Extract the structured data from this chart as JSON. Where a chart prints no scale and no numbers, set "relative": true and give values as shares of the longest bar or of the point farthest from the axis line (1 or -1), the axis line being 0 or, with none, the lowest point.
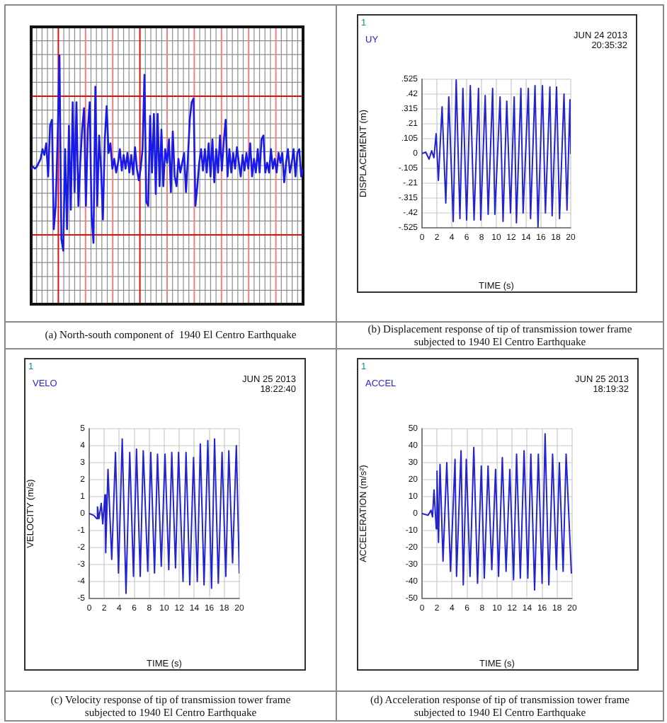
{
  "chart_data": [
    {
      "type": "line",
      "title": "(a) North-south component of  1940 El Centro Earthquake",
      "relative": true,
      "grid": true,
      "categories": [
        null,
        null,
        null,
        null,
        null,
        null,
        null,
        null,
        null,
        null,
        null,
        null,
        null,
        null,
        null,
        null,
        null,
        null,
        null,
        null,
        null,
        null,
        null,
        null,
        null,
        null,
        null,
        null,
        null,
        null,
        null,
        null,
        null,
        null,
        null,
        null,
        null,
        null,
        null,
        null,
        null,
        null,
        null,
        null,
        null,
        null,
        null,
        null,
        null,
        null,
        null,
        null,
        null,
        null,
        null,
        null,
        null,
        null,
        null,
        null,
        null,
        null,
        null,
        null,
        null,
        null,
        null,
        null,
        null,
        null,
        null,
        null,
        null,
        null,
        null,
        null,
        null,
        null,
        null,
        null,
        null,
        null,
        null,
        null,
        null,
        null,
        null,
        null,
        null,
        null,
        null,
        null,
        null,
        null,
        null,
        null,
        null,
        null,
        null,
        null,
        null,
        null,
        null,
        null,
        null,
        null,
        null,
        null,
        null,
        null,
        null,
        null,
        null,
        null,
        null,
        null,
        null,
        null,
        null,
        null,
        null,
        null,
        null,
        null,
        null,
        null,
        null,
        null,
        null,
        null,
        null,
        null,
        null,
        null,
        null,
        null,
        null,
        null,
        null,
        null,
        null,
        null,
        null,
        null,
        null
      ],
      "values": [
        0.42,
        0.43,
        0.42,
        0.43,
        0.45,
        0.47,
        0.52,
        0.49,
        0.55,
        0.38,
        0.64,
        0.67,
        0.11,
        0.23,
        0.57,
        1,
        0.06,
        0,
        0.52,
        0.11,
        0.64,
        0.21,
        0.76,
        0.3,
        0.76,
        0.23,
        0.45,
        0.62,
        0.73,
        0.23,
        0.62,
        0.76,
        0.18,
        0.04,
        0.84,
        0.23,
        0.59,
        0.42,
        0.16,
        0.57,
        0.74,
        0.5,
        0.55,
        0.42,
        0.47,
        0.4,
        0.45,
        0.52,
        0.41,
        0.49,
        0.42,
        0.5,
        0.4,
        0.49,
        0.39,
        0.53,
        0.42,
        0.36,
        0.42,
        0.52,
        0.9,
        0.25,
        0.23,
        0.69,
        0.4,
        0.7,
        0.29,
        0.7,
        0.33,
        0.62,
        0.33,
        0.52,
        0.45,
        0.57,
        0.3,
        0.61,
        0.38,
        0.33,
        0.47,
        0.4,
        0.45,
        0.5,
        0.3,
        0.47,
        0.67,
        0.76,
        0.78,
        0.23,
        0.33,
        0.45,
        0.52,
        0.41,
        0.52,
        0.4,
        0.55,
        0.38,
        0.57,
        0.35,
        0.52,
        0.4,
        0.59,
        0.41,
        0.56,
        0.67,
        0.38,
        0.52,
        0.4,
        0.5,
        0.42,
        0.53,
        0.45,
        0.38,
        0.49,
        0.41,
        0.5,
        0.42,
        0.55,
        0.38,
        0.47,
        0.4,
        0.52,
        0.4,
        0.57,
        0.59,
        0.4,
        0.45,
        0.4,
        0.52,
        0.42,
        0.47,
        0.4,
        0.5,
        0.45,
        0.5,
        0.35,
        0.45,
        0.52,
        0.4,
        0.45,
        0.52,
        0.38,
        0.5,
        0.52,
        0.38,
        0.42
      ],
      "color": "#1a1ae6"
    },
    {
      "type": "line",
      "title": "(b) Displacement response of tip of transmission tower frame subjected to 1940 El Centro Earthquake",
      "xlabel": "TIME (s)",
      "ylabel": "DISPLACEMENT (m)",
      "annotations": [
        "1",
        "JUN 24 2013",
        "20:35:32"
      ],
      "x": [
        0,
        0.5,
        0.95,
        1.3,
        1.6,
        1.9,
        2.2,
        2.7,
        3.2,
        3.6,
        4.2,
        4.6,
        5.1,
        5.5,
        6.0,
        6.5,
        7.0,
        7.6,
        7.9,
        8.5,
        8.9,
        9.5,
        9.8,
        10.5,
        10.9,
        11.4,
        11.9,
        12.4,
        12.7,
        13.3,
        13.6,
        14.3,
        14.6,
        15.2,
        15.6,
        16.2,
        16.6,
        17.2,
        17.5,
        18.1,
        18.5,
        19.1,
        19.5,
        19.9,
        20
      ],
      "series": [
        {
          "name": "UY",
          "color": "#2424cc",
          "values": [
            0,
            0.01,
            -0.04,
            0.02,
            -0.03,
            0.14,
            -0.19,
            0.33,
            -0.35,
            0.4,
            -0.48,
            0.52,
            -0.46,
            0.46,
            -0.47,
            0.48,
            -0.47,
            0.46,
            -0.47,
            0.41,
            -0.43,
            0.46,
            -0.43,
            0.4,
            -0.48,
            0.37,
            -0.42,
            0.4,
            -0.49,
            0.46,
            -0.42,
            0.46,
            -0.46,
            0.48,
            -0.52,
            0.48,
            -0.42,
            0.47,
            -0.44,
            0.47,
            -0.46,
            0.42,
            -0.4,
            0.38,
            0
          ]
        }
      ],
      "xlim": [
        0,
        20
      ],
      "xticks": [
        0,
        2,
        4,
        6,
        8,
        10,
        12,
        14,
        16,
        18,
        20
      ],
      "ylim": [
        -0.525,
        0.525
      ],
      "yticks": [
        {
          "value": -0.525,
          "label": "-.525"
        },
        {
          "value": -0.42,
          "label": "-.42"
        },
        {
          "value": -0.315,
          "label": "-.315"
        },
        {
          "value": -0.21,
          "label": "-.21"
        },
        {
          "value": -0.105,
          "label": "-.105"
        },
        0,
        {
          "value": 0.105,
          "label": ".105"
        },
        {
          "value": 0.21,
          "label": ".21"
        },
        {
          "value": 0.315,
          "label": ".315"
        },
        {
          "value": 0.42,
          "label": ".42"
        },
        {
          "value": 0.525,
          "label": ".525"
        }
      ],
      "grid": true,
      "legend": "top left"
    },
    {
      "type": "line",
      "title": "(c) Velocity response of tip of transmission tower frame subjected to 1940 El Centro Earthquake",
      "xlabel": "TIME (s)",
      "ylabel": "VELOCITY (m/s)",
      "annotations": [
        "1",
        "JUN 25 2013",
        "18:22:40"
      ],
      "x": [
        0,
        0.6,
        1.0,
        1.1,
        1.3,
        1.6,
        1.8,
        2.1,
        2.2,
        2.5,
        3.0,
        3.5,
        3.9,
        4.4,
        4.9,
        5.4,
        5.9,
        6.3,
        6.8,
        7.2,
        7.8,
        8.2,
        8.7,
        9.1,
        9.6,
        10.1,
        10.6,
        11.0,
        11.5,
        11.9,
        12.5,
        12.9,
        13.4,
        13.9,
        14.4,
        14.8,
        15.3,
        15.8,
        16.3,
        16.7,
        17.2,
        17.7,
        18.2,
        18.6,
        19.1,
        19.6,
        20
      ],
      "series": [
        {
          "name": "VELO",
          "color": "#2424cc",
          "values": [
            0,
            -0.1,
            -0.3,
            0.4,
            -0.3,
            0.6,
            -0.6,
            1.1,
            -2.3,
            2.6,
            -2.7,
            3.6,
            -3.5,
            4.4,
            -4.7,
            3.6,
            -3.7,
            3.8,
            -3.7,
            3.7,
            -3.4,
            3.6,
            -3.5,
            3.5,
            -3.1,
            3.5,
            -3.3,
            3.6,
            -3.2,
            3.6,
            -4.0,
            3.6,
            -4.2,
            3.3,
            -4.0,
            4.1,
            -4.2,
            4.3,
            -4.4,
            4.4,
            -4.1,
            3.6,
            -3.7,
            3.7,
            -2.9,
            4.0,
            -3.5
          ]
        }
      ],
      "xlim": [
        0,
        20
      ],
      "xticks": [
        0,
        2,
        4,
        6,
        8,
        10,
        12,
        14,
        16,
        18,
        20
      ],
      "ylim": [
        -5,
        5
      ],
      "yticks": [
        -5,
        -4,
        -3,
        -2,
        -1,
        0,
        1,
        2,
        3,
        4,
        5
      ],
      "grid": true,
      "legend": "top left"
    },
    {
      "type": "line",
      "title": "(d) Acceleration response of tip of transmission tower frame subjected to 1940 El Centro Earthquake",
      "xlabel": "TIME (s)",
      "ylabel": "ACCELERATION (m/s²)",
      "annotations": [
        "1",
        "JUN 25 2013",
        "18:19:32"
      ],
      "x": [
        0,
        0.8,
        1.2,
        1.4,
        1.6,
        1.9,
        2.0,
        2.2,
        2.4,
        2.8,
        3.3,
        3.8,
        4.4,
        4.6,
        5.2,
        5.5,
        5.9,
        6.4,
        6.9,
        7.4,
        7.9,
        8.3,
        8.8,
        9.3,
        9.8,
        10.2,
        10.7,
        11.2,
        11.7,
        12.2,
        12.6,
        13.1,
        13.6,
        14.1,
        14.5,
        15.0,
        15.5,
        16.0,
        16.4,
        16.9,
        17.4,
        17.9,
        18.3,
        18.8,
        19.2,
        19.9
      ],
      "series": [
        {
          "name": "ACCEL",
          "color": "#2424cc",
          "values": [
            0,
            -1,
            2,
            -2,
            14,
            -9,
            25,
            -17,
            29,
            -28,
            30,
            -34,
            32,
            -37,
            37,
            -42,
            32,
            -37,
            39,
            -41,
            28,
            -38,
            28,
            -33,
            26,
            -37,
            33,
            -34,
            26,
            -39,
            35,
            -38,
            37,
            -38,
            35,
            -45,
            35,
            -41,
            47,
            -42,
            35,
            -33,
            30,
            -34,
            35,
            -35
          ]
        }
      ],
      "xlim": [
        0,
        20
      ],
      "xticks": [
        0,
        2,
        4,
        6,
        8,
        10,
        12,
        14,
        16,
        18,
        20
      ],
      "ylim": [
        -50,
        50
      ],
      "yticks": [
        -50,
        -40,
        -30,
        -20,
        -10,
        0,
        10,
        20,
        30,
        40,
        50
      ],
      "grid": true,
      "legend": "top left"
    }
  ]
}
